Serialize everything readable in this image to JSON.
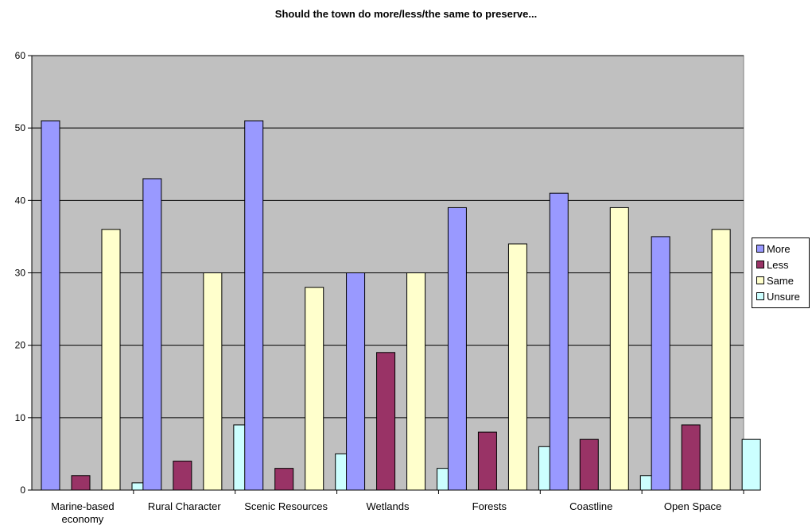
{
  "chart_data": {
    "type": "bar",
    "title": "Should the town do more/less/the same to preserve...",
    "xlabel": "",
    "ylabel": "",
    "ylim": [
      0,
      60
    ],
    "yticks": [
      0,
      10,
      20,
      30,
      40,
      50,
      60
    ],
    "grid": true,
    "legend_position": "right",
    "categories": [
      "Marine-based economy",
      "Rural Character",
      "Scenic Resources",
      "Wetlands",
      "Forests",
      "Coastline",
      "Open Space"
    ],
    "series": [
      {
        "name": "More",
        "color": "#9999ff",
        "values": [
          51,
          43,
          51,
          30,
          39,
          41,
          35
        ]
      },
      {
        "name": "Less",
        "color": "#993366",
        "values": [
          2,
          4,
          3,
          19,
          8,
          7,
          9
        ]
      },
      {
        "name": "Same",
        "color": "#ffffcc",
        "values": [
          36,
          30,
          28,
          30,
          34,
          39,
          36
        ]
      },
      {
        "name": "Unsure",
        "color": "#ccffff",
        "values": [
          1,
          9,
          5,
          3,
          6,
          2,
          7
        ]
      }
    ],
    "plot_background": "#c0c0c0"
  }
}
